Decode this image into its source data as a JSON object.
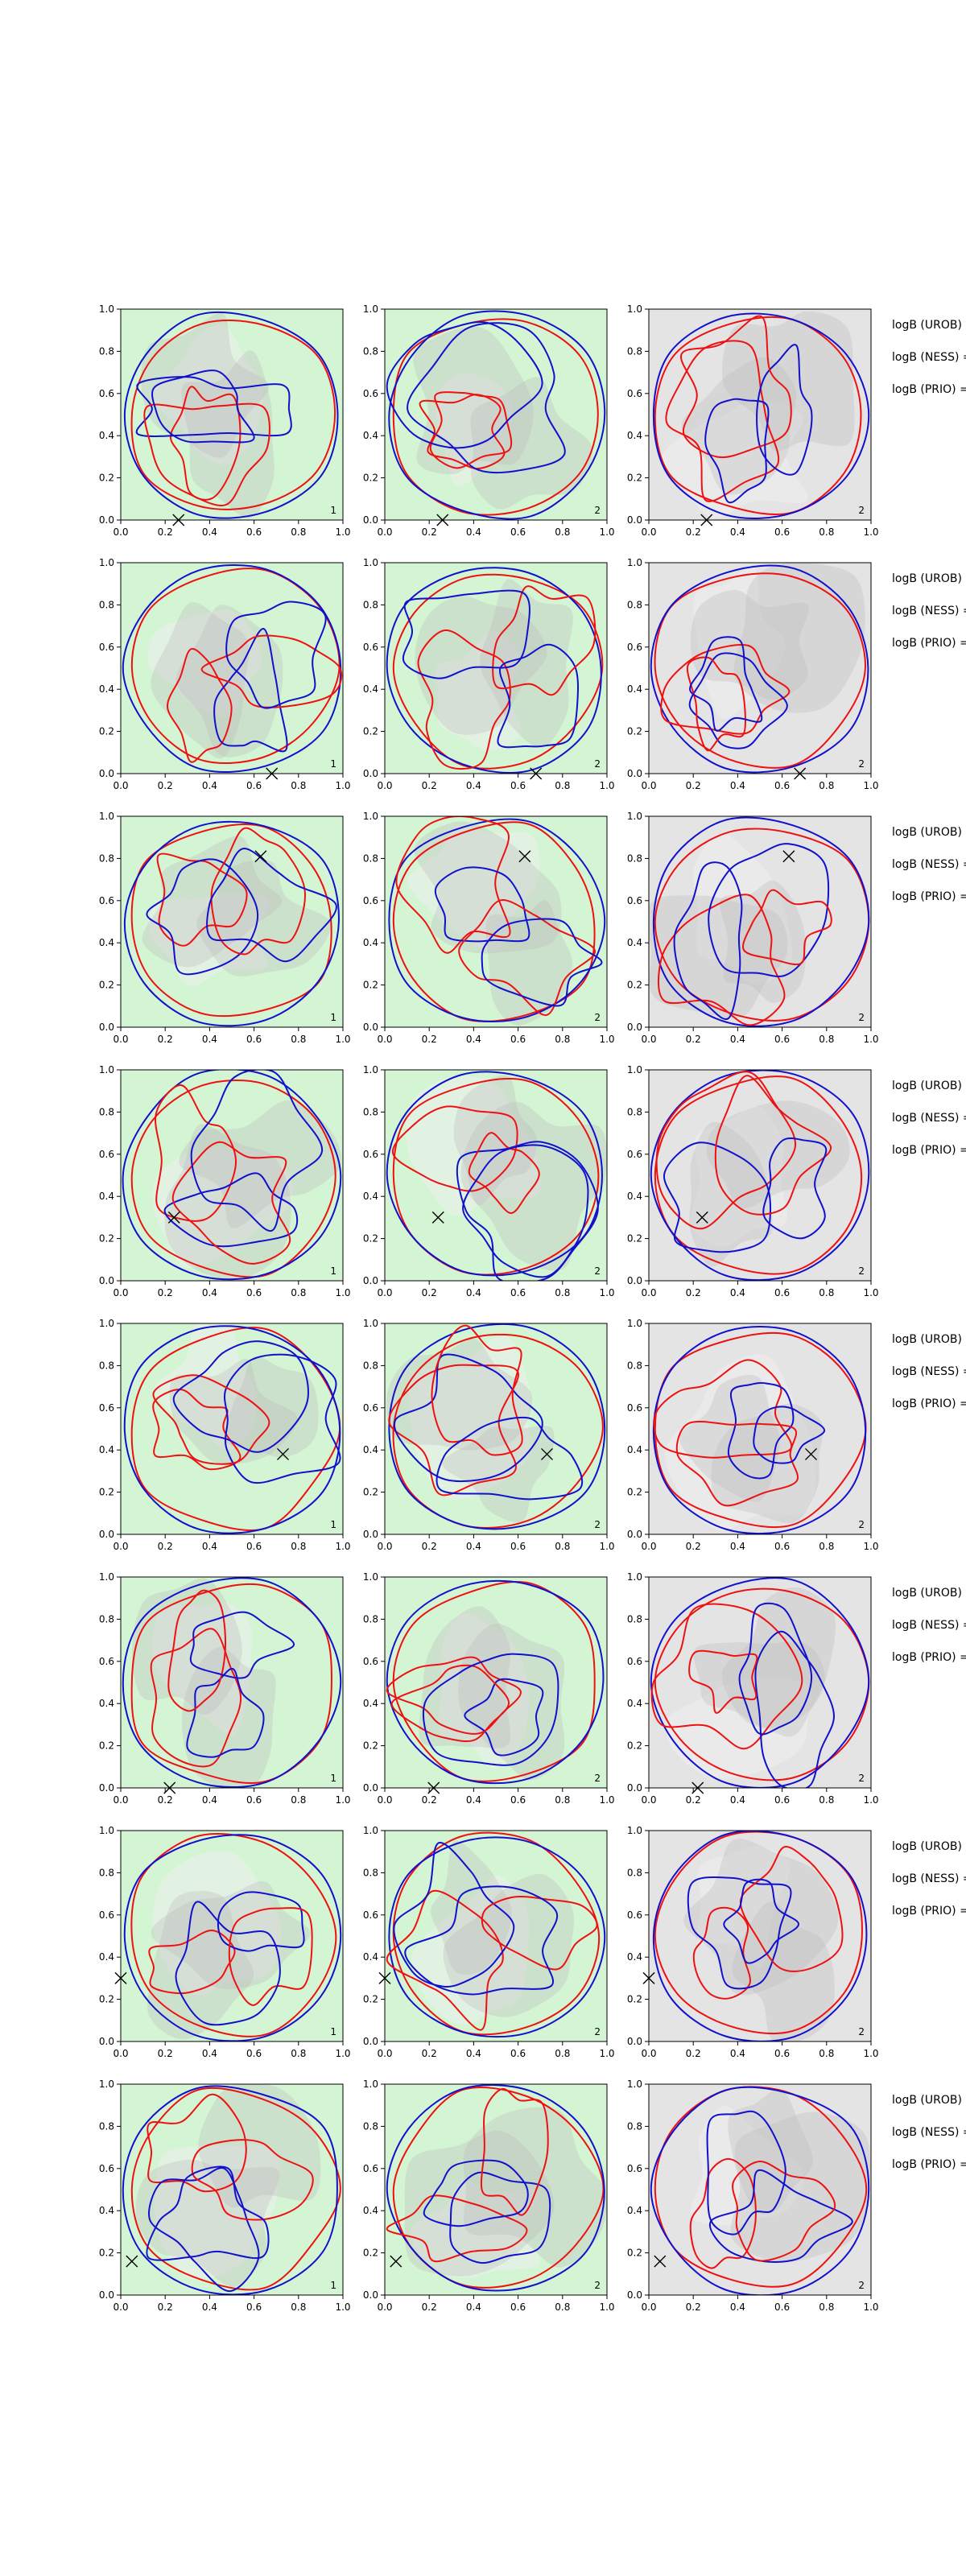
{
  "figure": {
    "rows": 8,
    "cols": 3,
    "axis_ticks": [
      "0.0",
      "0.2",
      "0.4",
      "0.6",
      "0.8",
      "1.0"
    ]
  },
  "colors": {
    "green_fill": "#d3f5d3",
    "gray_fill": "#e4e4e4",
    "light_fill": "#eeeeee",
    "region_dark": "#bcbcbc",
    "curve_red": "#ee1111",
    "curve_blue": "#1111cc"
  },
  "row_labels": [
    [
      "logB (UROB) =",
      "logB (NESS) =",
      "logB (PRIO) ="
    ],
    [
      "logB (UROB) =",
      "logB (NESS) =",
      "logB (PRIO) ="
    ],
    [
      "logB (UROB) =",
      "logB (NESS) =",
      "logB (PRIO) ="
    ],
    [
      "logB (UROB) =",
      "logB (NESS) =",
      "logB (PRIO) ="
    ],
    [
      "logB (UROB) =",
      "logB (NESS) =",
      "logB (PRIO) ="
    ],
    [
      "logB (UROB) =",
      "logB (NESS) =",
      "logB (PRIO) ="
    ],
    [
      "logB (UROB) =",
      "logB (NESS) =",
      "logB (PRIO) ="
    ],
    [
      "logB (UROB) =",
      "logB (NESS) =",
      "logB (PRIO) ="
    ]
  ],
  "chart_data": {
    "type": "contour",
    "xlim": [
      0,
      1
    ],
    "ylim": [
      0,
      1
    ],
    "xticks": [
      0.0,
      0.2,
      0.4,
      0.6,
      0.8,
      1.0
    ],
    "yticks": [
      0.0,
      0.2,
      0.4,
      0.6,
      0.8,
      1.0
    ],
    "grid": false,
    "panel_backgrounds": [
      "green",
      "green",
      "gray"
    ],
    "panel_numbers": [
      [
        "1",
        "2",
        "2"
      ],
      [
        "1",
        "2",
        "2"
      ],
      [
        "1",
        "2",
        "2"
      ],
      [
        "1",
        "2",
        "2"
      ],
      [
        "1",
        "2",
        "2"
      ],
      [
        "1",
        "2",
        "2"
      ],
      [
        "1",
        "2",
        "2"
      ],
      [
        "1",
        "2",
        "2"
      ]
    ],
    "markers": [
      {
        "x": 0.26,
        "y": 0.0
      },
      {
        "x": 0.68,
        "y": 0.0
      },
      {
        "x": 0.63,
        "y": 0.81
      },
      {
        "x": 0.24,
        "y": 0.3
      },
      {
        "x": 0.73,
        "y": 0.38
      },
      {
        "x": 0.22,
        "y": 0.0
      },
      {
        "x": 0.0,
        "y": 0.3
      },
      {
        "x": 0.05,
        "y": 0.16
      }
    ]
  }
}
